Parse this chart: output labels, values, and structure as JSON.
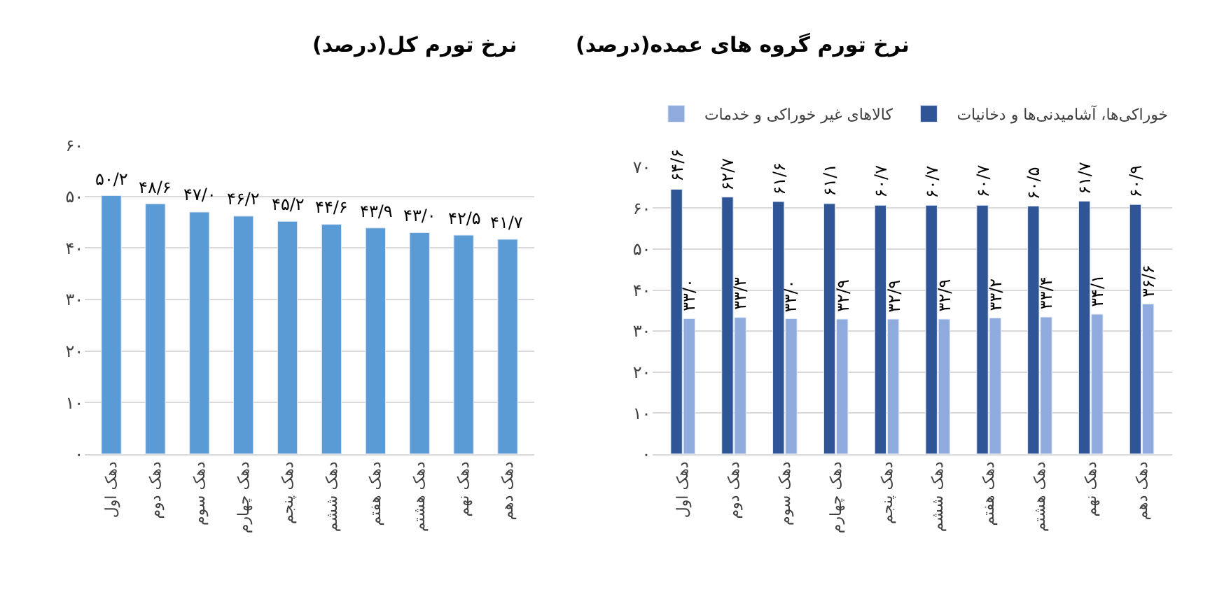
{
  "chart_data": [
    {
      "type": "bar",
      "title": "نرخ تورم کل(درصد)",
      "categories": [
        "دهک اول",
        "دهک دوم",
        "دهک سوم",
        "دهک چهارم",
        "دهک پنجم",
        "دهک ششم",
        "دهک هفتم",
        "دهک هشتم",
        "دهک نهم",
        "دهک دهم"
      ],
      "series": [
        {
          "color": "#5b9bd5",
          "values": [
            50.2,
            48.6,
            47.0,
            46.2,
            45.2,
            44.6,
            43.9,
            43.0,
            42.5,
            41.7
          ],
          "value_labels": [
            "۵۰/۲",
            "۴۸/۶",
            "۴۷/۰",
            "۴۶/۲",
            "۴۵/۲",
            "۴۴/۶",
            "۴۳/۹",
            "۴۳/۰",
            "۴۲/۵",
            "۴۱/۷"
          ]
        }
      ],
      "ylim": [
        0,
        60
      ],
      "yticks": [
        {
          "value": 0,
          "label": "۰"
        },
        {
          "value": 10,
          "label": "۱۰"
        },
        {
          "value": 20,
          "label": "۲۰"
        },
        {
          "value": 30,
          "label": "۳۰"
        },
        {
          "value": 40,
          "label": "۴۰"
        },
        {
          "value": 50,
          "label": "۵۰"
        },
        {
          "value": 60,
          "label": "۶۰"
        }
      ],
      "grid": "y",
      "legend": false
    },
    {
      "type": "bar",
      "title": "نرخ تورم گروه های عمده(درصد)",
      "categories": [
        "دهک اول",
        "دهک دوم",
        "دهک سوم",
        "دهک چهارم",
        "دهک پنجم",
        "دهک ششم",
        "دهک هفتم",
        "دهک هشتم",
        "دهک نهم",
        "دهک دهم"
      ],
      "series": [
        {
          "name": "خوراکی‌ها، آشامیدنی‌ها و دخانیات",
          "color": "#2f5597",
          "values": [
            64.6,
            62.7,
            61.6,
            61.1,
            60.7,
            60.7,
            60.7,
            60.5,
            61.7,
            60.9
          ],
          "value_labels": [
            "۶۴/۶",
            "۶۲/۷",
            "۶۱/۶",
            "۶۱/۱",
            "۶۰/۷",
            "۶۰/۷",
            "۶۰/۷",
            "۶۰/۵",
            "۶۱/۷",
            "۶۰/۹"
          ]
        },
        {
          "name": "کالاهای غیر خوراکی و خدمات",
          "color": "#8faadc",
          "values": [
            33.0,
            33.3,
            33.0,
            32.9,
            32.9,
            32.9,
            33.2,
            33.4,
            34.1,
            36.6
          ],
          "value_labels": [
            "۳۳/۰",
            "۳۳/۳",
            "۳۳/۰",
            "۳۲/۹",
            "۳۲/۹",
            "۳۲/۹",
            "۳۳/۲",
            "۳۳/۴",
            "۳۴/۱",
            "۳۶/۶"
          ]
        }
      ],
      "ylim": [
        0,
        70
      ],
      "yticks": [
        {
          "value": 0,
          "label": "۰"
        },
        {
          "value": 10,
          "label": "۱۰"
        },
        {
          "value": 20,
          "label": "۲۰"
        },
        {
          "value": 30,
          "label": "۳۰"
        },
        {
          "value": 40,
          "label": "۴۰"
        },
        {
          "value": 50,
          "label": "۵۰"
        },
        {
          "value": 60,
          "label": "۶۰"
        },
        {
          "value": 70,
          "label": "۷۰"
        }
      ],
      "grid": "y",
      "legend": "top"
    }
  ]
}
